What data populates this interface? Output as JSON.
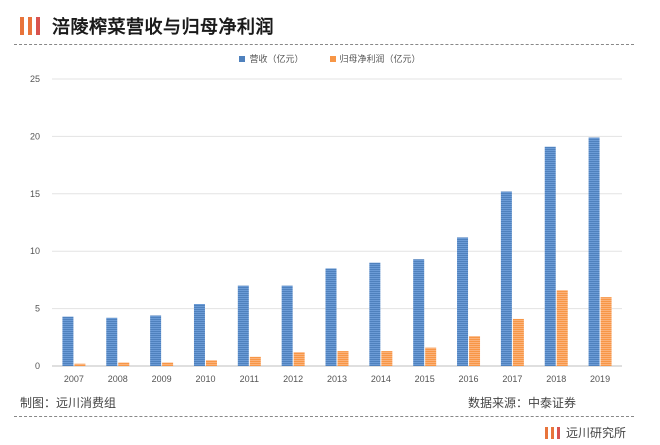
{
  "header": {
    "title": "涪陵榨菜营收与归母净利润"
  },
  "colors": {
    "revenue": "#4f81bd",
    "profit": "#f79646",
    "logo_orange": "#e8743b",
    "logo_red": "#d9534f"
  },
  "chart_data": {
    "type": "bar",
    "categories": [
      "2007",
      "2008",
      "2009",
      "2010",
      "2011",
      "2012",
      "2013",
      "2014",
      "2015",
      "2016",
      "2017",
      "2018",
      "2019"
    ],
    "series": [
      {
        "name": "营收（亿元）",
        "values": [
          4.3,
          4.2,
          4.4,
          5.4,
          7.0,
          7.0,
          8.5,
          9.0,
          9.3,
          11.2,
          15.2,
          19.1,
          19.9
        ]
      },
      {
        "name": "归母净利润（亿元）",
        "values": [
          0.2,
          0.3,
          0.3,
          0.5,
          0.8,
          1.2,
          1.3,
          1.3,
          1.6,
          2.6,
          4.1,
          6.6,
          6.0
        ]
      }
    ],
    "yticks": [
      "0",
      "5",
      "10",
      "15",
      "20",
      "25"
    ],
    "ylim": [
      0,
      25
    ],
    "grid": true,
    "legend": "top-center"
  },
  "footer": {
    "left": "制图：远川消费组",
    "right": "数据来源：中泰证券",
    "brand": "远川研究所"
  }
}
